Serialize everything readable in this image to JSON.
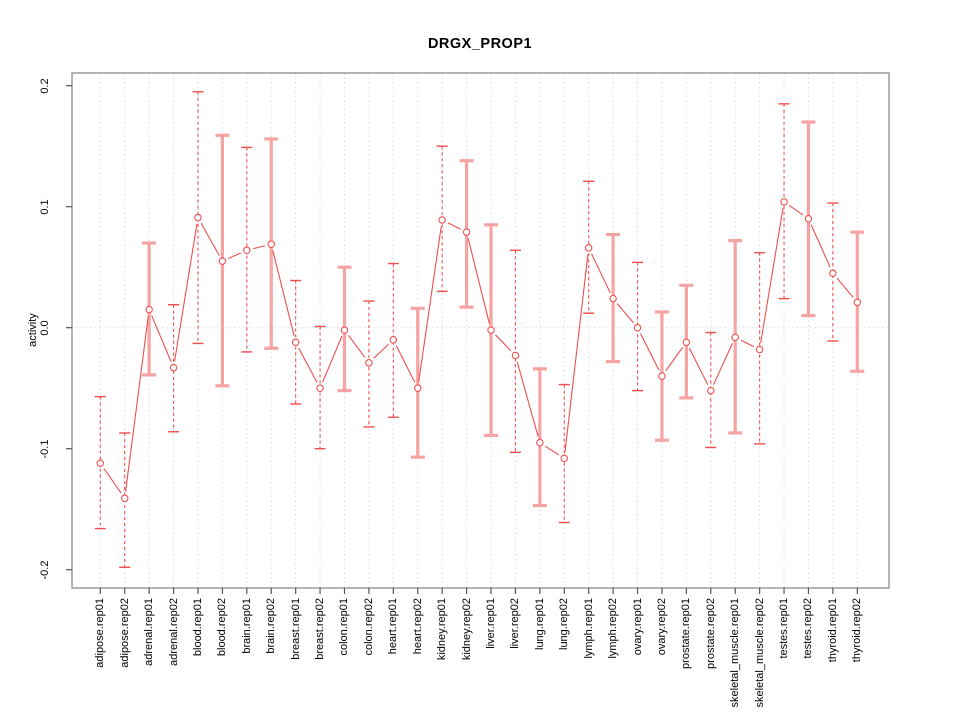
{
  "title": "DRGX_PROP1",
  "y_axis": {
    "label": "activity",
    "ticks": [
      "0.2",
      "0.1",
      "0.0",
      "-0.1",
      "-0.2"
    ],
    "tick_values": [
      0.2,
      0.1,
      0.0,
      -0.1,
      -0.2
    ]
  },
  "chart_data": {
    "type": "scatter",
    "title": "DRGX_PROP1",
    "xlabel": "",
    "ylabel": "activity",
    "ylim": [
      -0.215,
      0.211
    ],
    "grid": "vertical dotted gridline per category; dotted horizontal line at 0.0",
    "legend": "none",
    "marker": "open-circle",
    "categories": [
      "adipose.rep01",
      "adipose.rep02",
      "adrenal.rep01",
      "adrenal.rep02",
      "blood.rep01",
      "blood.rep02",
      "brain.rep01",
      "brain.rep02",
      "breast.rep01",
      "breast.rep02",
      "colon.rep01",
      "colon.rep02",
      "heart.rep01",
      "heart.rep02",
      "kidney.rep01",
      "kidney.rep02",
      "liver.rep01",
      "liver.rep02",
      "lung.rep01",
      "lung.rep02",
      "lymph.rep01",
      "lymph.rep02",
      "ovary.rep01",
      "ovary.rep02",
      "prostate.rep01",
      "prostate.rep02",
      "skeletal_muscle.rep01",
      "skeletal_muscle.rep02",
      "testes.rep01",
      "testes.rep02",
      "thyroid.rep01",
      "thyroid.rep02"
    ],
    "series": [
      {
        "name": "activity",
        "values": [
          -0.112,
          -0.141,
          0.015,
          -0.033,
          0.091,
          0.055,
          0.064,
          0.069,
          -0.012,
          -0.05,
          -0.002,
          -0.029,
          -0.01,
          -0.05,
          0.089,
          0.079,
          -0.002,
          -0.023,
          -0.095,
          -0.108,
          0.066,
          0.024,
          0.0,
          -0.04,
          -0.012,
          -0.052,
          -0.008,
          -0.018,
          0.104,
          0.09,
          0.045,
          0.021
        ],
        "error_low": [
          -0.166,
          -0.198,
          -0.039,
          -0.086,
          -0.013,
          -0.048,
          -0.02,
          -0.017,
          -0.063,
          -0.1,
          -0.052,
          -0.082,
          -0.074,
          -0.107,
          0.03,
          0.017,
          -0.089,
          -0.103,
          -0.147,
          -0.161,
          0.012,
          -0.028,
          -0.052,
          -0.093,
          -0.058,
          -0.099,
          -0.087,
          -0.096,
          0.024,
          0.01,
          -0.011,
          -0.036
        ],
        "error_high": [
          -0.057,
          -0.087,
          0.07,
          0.019,
          0.195,
          0.159,
          0.149,
          0.156,
          0.039,
          0.001,
          0.05,
          0.022,
          0.053,
          0.016,
          0.15,
          0.138,
          0.085,
          0.064,
          -0.034,
          -0.047,
          0.121,
          0.077,
          0.054,
          0.013,
          0.035,
          -0.004,
          0.072,
          0.062,
          0.185,
          0.17,
          0.103,
          0.079
        ],
        "bar_styles": [
          "dashed",
          "dashed",
          "solid",
          "dashed",
          "dashed",
          "solid",
          "dashed",
          "solid",
          "dashed",
          "dashed",
          "solid",
          "dashed",
          "dashed",
          "solid",
          "dashed",
          "solid",
          "solid",
          "dashed",
          "solid",
          "dashed",
          "dashed",
          "solid",
          "dashed",
          "solid",
          "solid",
          "dashed",
          "solid",
          "dashed",
          "dashed",
          "solid",
          "dashed",
          "solid"
        ]
      }
    ],
    "colors": {
      "line": "#f04e4e",
      "solid_bar": "#f5a3a3",
      "grid": "#d9d9d9",
      "box": "#8c8c8c",
      "tick": "#555555"
    }
  }
}
